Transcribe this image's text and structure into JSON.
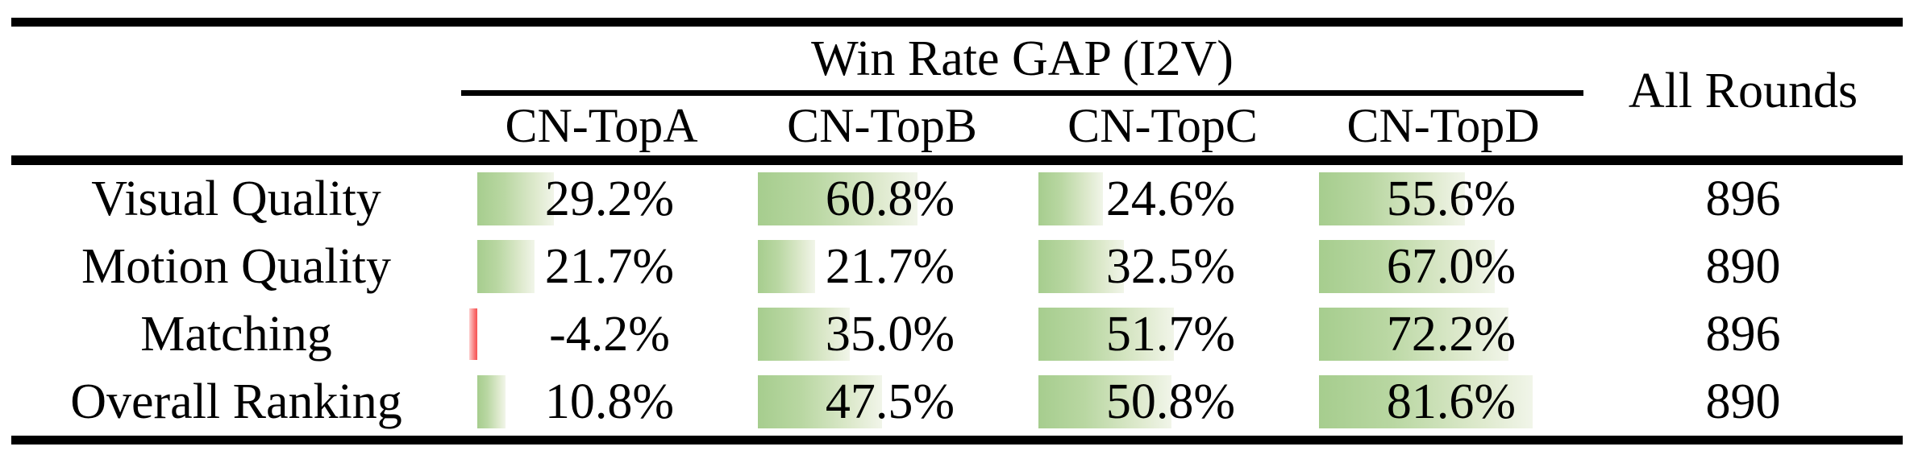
{
  "table": {
    "title": "Win Rate GAP (I2V)",
    "all_rounds_label": "All Rounds",
    "column_headers": [
      "CN-TopA",
      "CN-TopB",
      "CN-TopC",
      "CN-TopD"
    ],
    "rows": [
      {
        "label": "Visual Quality",
        "cells": [
          {
            "text": "29.2%",
            "value": 29.2
          },
          {
            "text": "60.8%",
            "value": 60.8
          },
          {
            "text": "24.6%",
            "value": 24.6
          },
          {
            "text": "55.6%",
            "value": 55.6
          }
        ],
        "all_rounds": "896"
      },
      {
        "label": "Motion Quality",
        "cells": [
          {
            "text": "21.7%",
            "value": 21.7
          },
          {
            "text": "21.7%",
            "value": 21.7
          },
          {
            "text": "32.5%",
            "value": 32.5
          },
          {
            "text": "67.0%",
            "value": 67.0
          }
        ],
        "all_rounds": "890"
      },
      {
        "label": "Matching",
        "cells": [
          {
            "text": "-4.2%",
            "value": -4.2
          },
          {
            "text": "35.0%",
            "value": 35.0
          },
          {
            "text": "51.7%",
            "value": 51.7
          },
          {
            "text": "72.2%",
            "value": 72.2
          }
        ],
        "all_rounds": "896"
      },
      {
        "label": "Overall Ranking",
        "cells": [
          {
            "text": "10.8%",
            "value": 10.8
          },
          {
            "text": "47.5%",
            "value": 47.5
          },
          {
            "text": "50.8%",
            "value": 50.8
          },
          {
            "text": "81.6%",
            "value": 81.6
          }
        ],
        "all_rounds": "890"
      }
    ],
    "colors": {
      "positive_bar_start": "#a6cd8e",
      "positive_bar_end": "#f1f5e9",
      "negative_bar_start": "#fccfcf",
      "negative_bar_end": "#f65252",
      "rule": "#000000",
      "text": "#000000",
      "background": "#ffffff"
    }
  },
  "chart_data": {
    "type": "table",
    "title": "Win Rate GAP (I2V)",
    "row_header": [
      "Visual Quality",
      "Motion Quality",
      "Matching",
      "Overall Ranking"
    ],
    "categories": [
      "CN-TopA",
      "CN-TopB",
      "CN-TopC",
      "CN-TopD"
    ],
    "series": [
      {
        "name": "Visual Quality",
        "values": [
          29.2,
          60.8,
          24.6,
          55.6
        ],
        "all_rounds": 896
      },
      {
        "name": "Motion Quality",
        "values": [
          21.7,
          21.7,
          32.5,
          67.0
        ],
        "all_rounds": 890
      },
      {
        "name": "Matching",
        "values": [
          -4.2,
          35.0,
          51.7,
          72.2
        ],
        "all_rounds": 896
      },
      {
        "name": "Overall Ranking",
        "values": [
          10.8,
          47.5,
          50.8,
          81.6
        ],
        "all_rounds": 890
      }
    ],
    "extra_column": {
      "label": "All Rounds",
      "values": [
        896,
        890,
        896,
        890
      ]
    },
    "value_unit": "%",
    "bar_scale": [
      0,
      100
    ],
    "layout": "data-bars inside cells, bar length proportional to win-rate gap; negative value shown as thin red bar"
  }
}
